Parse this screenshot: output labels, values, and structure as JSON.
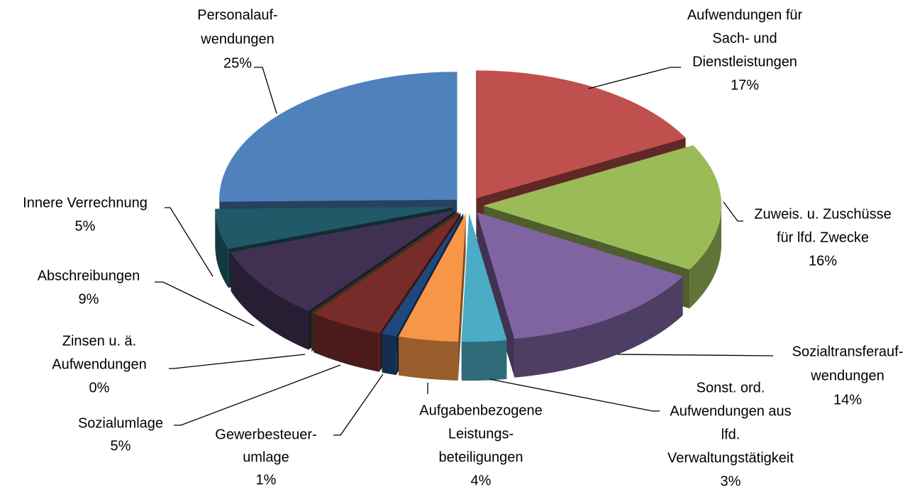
{
  "chart_data": {
    "type": "pie3d",
    "categories": [
      [
        "Aufwendungen für",
        "Sach- und",
        "Dienstleistungen"
      ],
      [
        "Zuweis. u. Zuschüsse",
        "für lfd. Zwecke"
      ],
      [
        "Sozialtransferauf-",
        "wendungen"
      ],
      [
        "Sonst. ord.",
        "Aufwendungen aus",
        "lfd.",
        "Verwaltungstätigkeit"
      ],
      [
        "Aufgabenbezogene",
        "Leistungs-",
        "beteiligungen"
      ],
      [
        "Gewerbesteuer-",
        "umlage"
      ],
      [
        "Sozialumlage"
      ],
      [
        "Zinsen u. ä.",
        "Aufwendungen"
      ],
      [
        "Abschreibungen"
      ],
      [
        "Innere Verrechnung"
      ],
      [
        "Personalauf-",
        "wendungen"
      ]
    ],
    "values": [
      17,
      16,
      14,
      3,
      4,
      1,
      5,
      0,
      9,
      5,
      25
    ],
    "value_labels": [
      "17%",
      "16%",
      "14%",
      "3%",
      "4%",
      "1%",
      "5%",
      "0%",
      "9%",
      "5%",
      "25%"
    ],
    "colors": [
      "#c0504d",
      "#9bbb59",
      "#8064a2",
      "#4bacc6",
      "#f79646",
      "#1f497d",
      "#772c2a",
      "#4f6228",
      "#403152",
      "#215968",
      "#4f81bd"
    ]
  }
}
